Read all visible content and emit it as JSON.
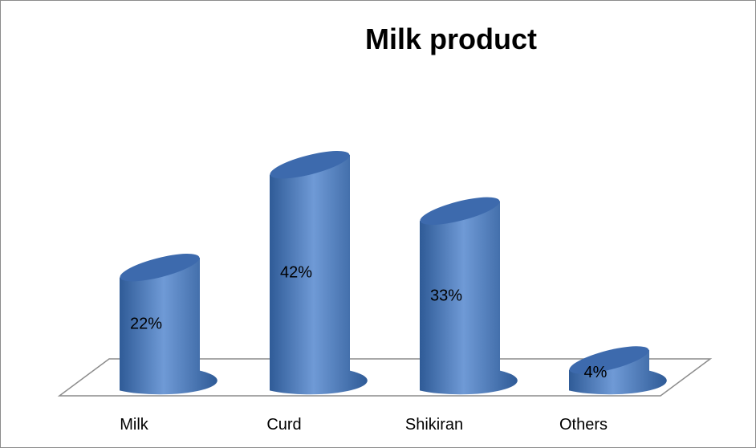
{
  "chart_data": {
    "type": "bar",
    "title": "Milk product",
    "categories": [
      "Milk",
      "Curd",
      "Shikiran",
      "Others"
    ],
    "values": [
      22,
      42,
      33,
      4
    ],
    "data_labels": [
      "22%",
      "42%",
      "33%",
      "4%"
    ],
    "unit": "%",
    "ylim": [
      0,
      50
    ],
    "grid": false,
    "legend": "none",
    "style": "3d-cylinder",
    "colors": {
      "bar": "#4a7ec4",
      "bar_dark": "#2f5b97",
      "bar_light": "#6f9ad6",
      "bar_top": "#3d6aad",
      "floor_stroke": "#8c8c8c"
    }
  }
}
